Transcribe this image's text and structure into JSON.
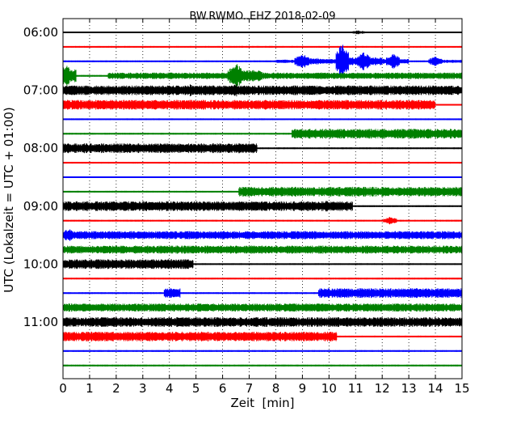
{
  "chart_data": {
    "type": "line",
    "title": "BW.RWMO..EHZ 2018-02-09",
    "xlabel": "Zeit  [min]",
    "ylabel": "UTC (Lokalzeit = UTC + 01:00)",
    "xlim": [
      0,
      15
    ],
    "x_ticks": [
      "0",
      "1",
      "2",
      "3",
      "4",
      "5",
      "6",
      "7",
      "8",
      "9",
      "10",
      "11",
      "12",
      "13",
      "14",
      "15"
    ],
    "y_ticks": [
      {
        "label": "06:00",
        "row": 0
      },
      {
        "label": "07:00",
        "row": 4
      },
      {
        "label": "08:00",
        "row": 8
      },
      {
        "label": "09:00",
        "row": 12
      },
      {
        "label": "10:00",
        "row": 16
      },
      {
        "label": "11:00",
        "row": 20
      }
    ],
    "row_interval_min": 15,
    "grid": "dotted vertical",
    "colors": [
      "#000000",
      "#ff0000",
      "#0000ff",
      "#008000"
    ],
    "traces": [
      {
        "start": "06:00",
        "color": "#000000",
        "amplitude": [
          [
            0,
            15,
            1
          ]
        ],
        "bursts": [
          [
            11.1,
            2.5
          ]
        ]
      },
      {
        "start": "06:15",
        "color": "#ff0000",
        "amplitude": [
          [
            0,
            15,
            1
          ]
        ],
        "bursts": []
      },
      {
        "start": "06:30",
        "color": "#0000ff",
        "amplitude": [
          [
            0,
            8.0,
            1
          ],
          [
            8.0,
            8.7,
            2
          ],
          [
            8.7,
            9.7,
            4
          ],
          [
            9.7,
            10.3,
            3
          ],
          [
            10.3,
            11.0,
            5
          ],
          [
            11.0,
            12.0,
            5
          ],
          [
            12.0,
            13.0,
            3
          ],
          [
            13.0,
            13.8,
            1
          ],
          [
            13.8,
            15,
            2
          ]
        ],
        "bursts": [
          [
            9.0,
            10
          ],
          [
            10.5,
            22
          ],
          [
            11.3,
            12
          ],
          [
            12.4,
            10
          ],
          [
            14.0,
            6
          ]
        ]
      },
      {
        "start": "06:45",
        "color": "#008000",
        "amplitude": [
          [
            0,
            0.5,
            8
          ],
          [
            0.5,
            1.7,
            1
          ],
          [
            1.7,
            6.2,
            4
          ],
          [
            6.2,
            7.5,
            7
          ],
          [
            7.5,
            15,
            4
          ]
        ],
        "bursts": [
          [
            0.1,
            14
          ],
          [
            6.5,
            16
          ]
        ]
      },
      {
        "start": "07:00",
        "color": "#000000",
        "amplitude": [
          [
            0,
            15,
            6
          ]
        ],
        "bursts": [
          [
            4.8,
            8
          ],
          [
            6.5,
            8
          ]
        ]
      },
      {
        "start": "07:15",
        "color": "#ff0000",
        "amplitude": [
          [
            0,
            14.0,
            6
          ],
          [
            14.0,
            15,
            1
          ]
        ],
        "bursts": []
      },
      {
        "start": "07:30",
        "color": "#0000ff",
        "amplitude": [
          [
            0,
            15,
            1
          ]
        ],
        "bursts": []
      },
      {
        "start": "07:45",
        "color": "#008000",
        "amplitude": [
          [
            0,
            8.6,
            1
          ],
          [
            8.6,
            15,
            6
          ]
        ],
        "bursts": []
      },
      {
        "start": "08:00",
        "color": "#000000",
        "amplitude": [
          [
            0,
            7.3,
            6
          ],
          [
            7.3,
            15,
            1
          ]
        ],
        "bursts": []
      },
      {
        "start": "08:15",
        "color": "#ff0000",
        "amplitude": [
          [
            0,
            15,
            1
          ]
        ],
        "bursts": []
      },
      {
        "start": "08:30",
        "color": "#0000ff",
        "amplitude": [
          [
            0,
            15,
            1
          ]
        ],
        "bursts": []
      },
      {
        "start": "08:45",
        "color": "#008000",
        "amplitude": [
          [
            0,
            6.6,
            1
          ],
          [
            6.6,
            15,
            6
          ]
        ],
        "bursts": []
      },
      {
        "start": "09:00",
        "color": "#000000",
        "amplitude": [
          [
            0,
            10.9,
            6
          ],
          [
            10.9,
            15,
            1
          ]
        ],
        "bursts": [
          [
            9.9,
            7
          ]
        ]
      },
      {
        "start": "09:15",
        "color": "#ff0000",
        "amplitude": [
          [
            0,
            15,
            1
          ]
        ],
        "bursts": [
          [
            12.3,
            5
          ]
        ]
      },
      {
        "start": "09:30",
        "color": "#0000ff",
        "amplitude": [
          [
            0,
            15,
            5
          ]
        ],
        "bursts": [
          [
            0.2,
            8
          ]
        ]
      },
      {
        "start": "09:45",
        "color": "#008000",
        "amplitude": [
          [
            0,
            15,
            5
          ]
        ],
        "bursts": []
      },
      {
        "start": "10:00",
        "color": "#000000",
        "amplitude": [
          [
            0,
            4.9,
            6
          ],
          [
            4.9,
            15,
            1
          ]
        ],
        "bursts": []
      },
      {
        "start": "10:15",
        "color": "#ff0000",
        "amplitude": [
          [
            0,
            15,
            1
          ]
        ],
        "bursts": []
      },
      {
        "start": "10:30",
        "color": "#0000ff",
        "amplitude": [
          [
            0,
            3.8,
            1
          ],
          [
            3.8,
            4.4,
            6
          ],
          [
            4.4,
            9.6,
            1
          ],
          [
            9.6,
            15,
            6
          ]
        ],
        "bursts": []
      },
      {
        "start": "10:45",
        "color": "#008000",
        "amplitude": [
          [
            0,
            15,
            5
          ]
        ],
        "bursts": []
      },
      {
        "start": "11:00",
        "color": "#000000",
        "amplitude": [
          [
            0,
            15,
            6
          ]
        ],
        "bursts": []
      },
      {
        "start": "11:15",
        "color": "#ff0000",
        "amplitude": [
          [
            0,
            10.3,
            6
          ],
          [
            10.3,
            15,
            1
          ]
        ],
        "bursts": []
      },
      {
        "start": "11:30",
        "color": "#0000ff",
        "amplitude": [
          [
            0,
            15,
            1
          ]
        ],
        "bursts": []
      },
      {
        "start": "11:45",
        "color": "#008000",
        "amplitude": [
          [
            0,
            15,
            1
          ]
        ],
        "bursts": []
      }
    ]
  }
}
